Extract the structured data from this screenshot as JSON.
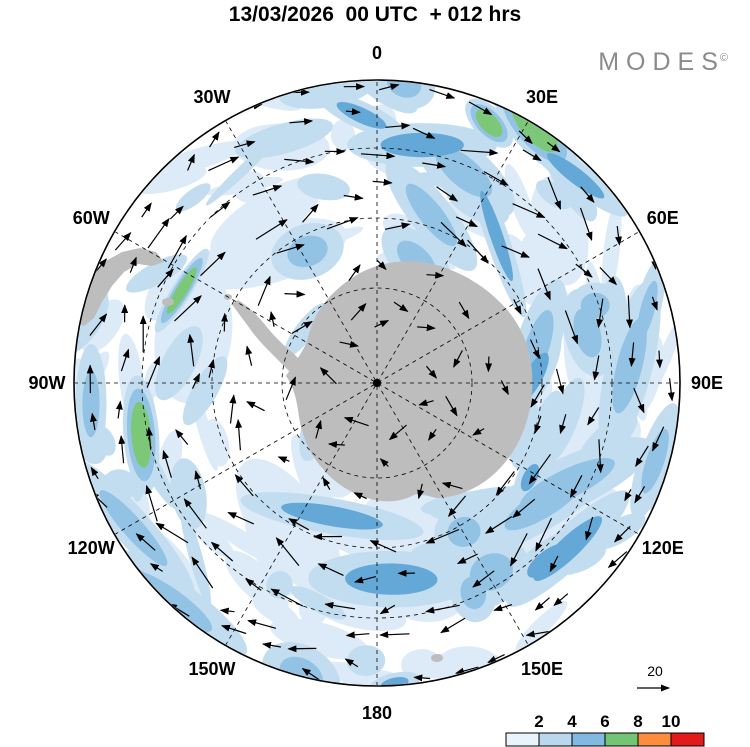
{
  "header": {
    "title": "13/03/2026  00 UTC  + 012 hrs"
  },
  "branding": {
    "name": "MODES",
    "mark": "©"
  },
  "map": {
    "lon_labels": [
      "0",
      "30E",
      "60E",
      "90E",
      "120E",
      "150E",
      "180",
      "150W",
      "120W",
      "90W",
      "60W",
      "30W"
    ],
    "land_color": "#bdbdbd",
    "shade_palette": [
      "#dcebf7",
      "#c3ddf0",
      "#93c3e4",
      "#64a8d8",
      "#7cc878"
    ]
  },
  "legend": {
    "ref_value": "20"
  },
  "colorbar": {
    "labels": [
      "2",
      "4",
      "6",
      "8",
      "10"
    ],
    "colors": [
      "#e9f3fb",
      "#b9d8ee",
      "#82b9e2",
      "#74c476",
      "#fd8d3c",
      "#e31a1c"
    ]
  },
  "chart_data": {
    "type": "heatmap",
    "title": "13/03/2026 00 UTC + 012 hrs",
    "model": "MODES",
    "valid_time": "13/03/2026 00 UTC",
    "lead_time_hours": 12,
    "projection": "south-polar-stereographic",
    "region": "Southern Hemisphere / Antarctica",
    "longitude_labels": [
      "0",
      "30E",
      "60E",
      "90E",
      "120E",
      "150E",
      "180",
      "150W",
      "120W",
      "90W",
      "60W",
      "30W"
    ],
    "shading_levels": [
      2,
      4,
      6,
      8,
      10
    ],
    "shading_colors": [
      "#e9f3fb",
      "#b9d8ee",
      "#82b9e2",
      "#74c476",
      "#fd8d3c",
      "#e31a1c"
    ],
    "overlay": "wind vector arrows",
    "reference_vector": 20,
    "legend_position": "bottom-right",
    "grid": "dashed graticule every 30 degrees longitude"
  }
}
